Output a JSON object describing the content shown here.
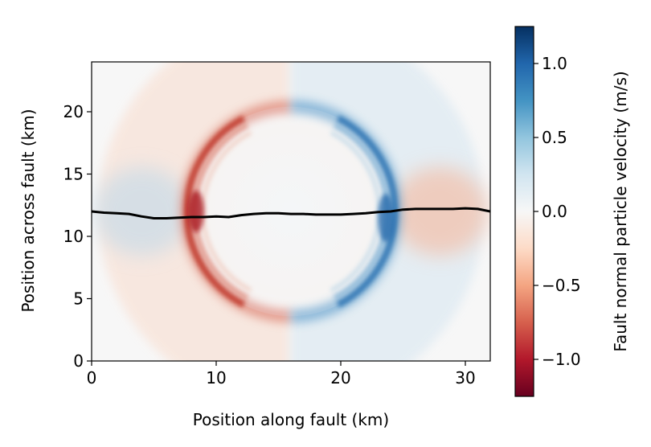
{
  "chart_data": {
    "type": "heatmap",
    "title": "",
    "xlabel": "Position along fault (km)",
    "ylabel": "Position across fault (km)",
    "colorbar_label": "Fault normal particle velocity (m/s)",
    "xlim": [
      0,
      32
    ],
    "ylim": [
      0,
      24
    ],
    "clim": [
      -1.25,
      1.25
    ],
    "colormap": "RdBu",
    "x_ticks": [
      0,
      10,
      20,
      30
    ],
    "y_ticks": [
      0,
      5,
      10,
      15,
      20
    ],
    "colorbar_ticks": [
      -1.0,
      -0.5,
      0.0,
      0.5,
      1.0
    ],
    "colorbar_tick_labels": [
      "−1.0",
      "−0.5",
      "0.0",
      "0.5",
      "1.0"
    ],
    "field_features": {
      "rupture_center_km": [
        16,
        12
      ],
      "inner_front_radius_km": 8.4,
      "outer_front_radius_km": 15.5,
      "negative_side": "left",
      "positive_side": "right"
    },
    "fault_trace": {
      "name": "fault trace",
      "color": "#000000",
      "x": [
        0,
        1,
        2,
        3,
        4,
        5,
        6,
        7,
        8,
        9,
        10,
        11,
        12,
        13,
        14,
        15,
        16,
        17,
        18,
        19,
        20,
        21,
        22,
        23,
        24,
        25,
        26,
        27,
        28,
        29,
        30,
        31,
        32
      ],
      "y": [
        12.0,
        11.9,
        11.85,
        11.8,
        11.6,
        11.45,
        11.45,
        11.5,
        11.55,
        11.55,
        11.6,
        11.55,
        11.7,
        11.8,
        11.85,
        11.85,
        11.8,
        11.8,
        11.75,
        11.75,
        11.75,
        11.8,
        11.85,
        11.95,
        12.0,
        12.15,
        12.2,
        12.2,
        12.2,
        12.2,
        12.25,
        12.2,
        12.0
      ]
    }
  }
}
